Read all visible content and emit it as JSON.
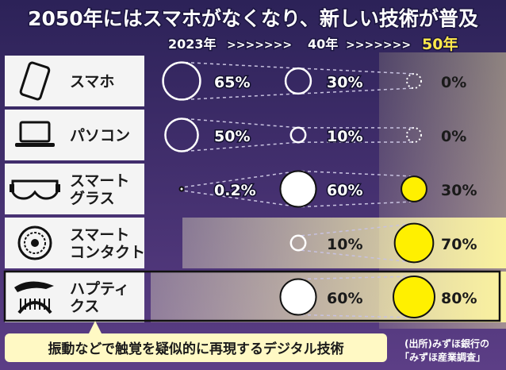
{
  "title": "2050年にはスマホがなくなり、新しい技術が普及",
  "timeline": {
    "labels": [
      "2023年",
      "40年",
      "50年"
    ],
    "arrows": ">>>>>>>"
  },
  "chart_data": {
    "type": "table",
    "columns": [
      "2023年",
      "40年",
      "50年"
    ],
    "rows": [
      {
        "category": "スマホ",
        "icon": "smartphone-icon",
        "values": [
          65,
          30,
          0
        ],
        "labels": [
          "65%",
          "30%",
          "0%"
        ]
      },
      {
        "category": "パソコン",
        "icon": "laptop-icon",
        "values": [
          50,
          10,
          0
        ],
        "labels": [
          "50%",
          "10%",
          "0%"
        ]
      },
      {
        "category": "スマートグラス",
        "icon": "smart-glasses-icon",
        "values": [
          0.2,
          60,
          30
        ],
        "labels": [
          "0.2%",
          "60%",
          "30%"
        ]
      },
      {
        "category": "スマートコンタクト",
        "icon": "contact-lens-icon",
        "values": [
          null,
          10,
          70
        ],
        "labels": [
          "",
          "10%",
          "70%"
        ]
      },
      {
        "category": "ハプティクス",
        "icon": "haptics-icon",
        "values": [
          null,
          60,
          80
        ],
        "labels": [
          "",
          "60%",
          "80%"
        ]
      }
    ]
  },
  "row_label_lines": [
    [
      "スマホ"
    ],
    [
      "パソコン"
    ],
    [
      "スマート",
      "グラス"
    ],
    [
      "スマート",
      "コンタクト"
    ],
    [
      "ハプティ",
      "クス"
    ]
  ],
  "footnote": "振動などで触覚を疑似的に再現するデジタル技術",
  "source": [
    "(出所)みずほ銀行の",
    "「みずほ産業調査」"
  ],
  "colors": {
    "background": "#3a2c66",
    "label_panel": "#f4f4f4",
    "bubble_white": "#ffffff",
    "bubble_yellow": "#fff000",
    "highlight_band": "#fff7b0",
    "title_text": "#ffffff",
    "accent_text": "#ffe94a"
  }
}
